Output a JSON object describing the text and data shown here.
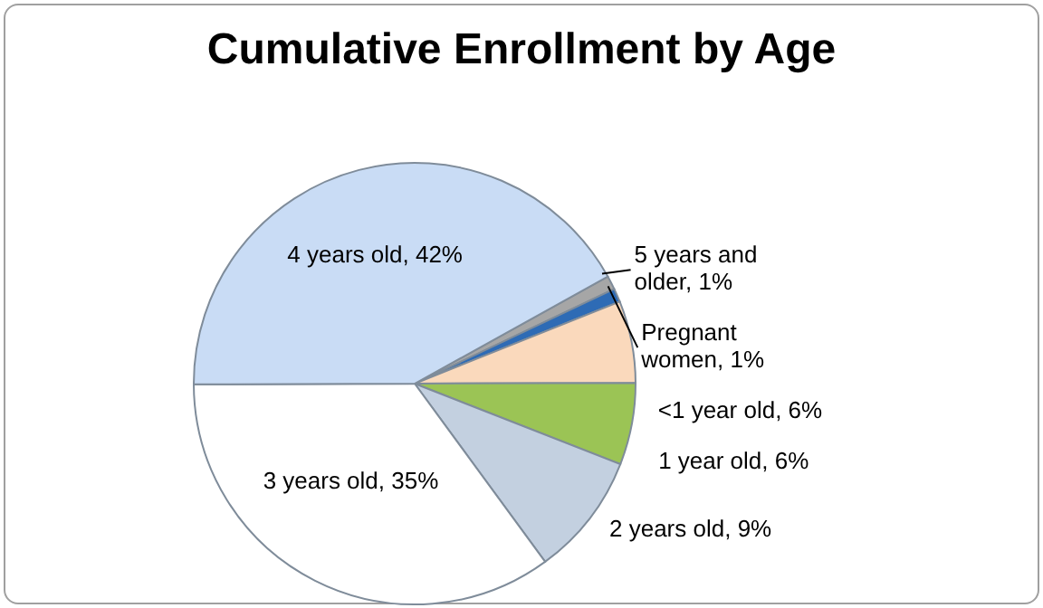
{
  "chart_data": {
    "type": "pie",
    "title": "Cumulative Enrollment by Age",
    "categories": [
      "5 years and older",
      "Pregnant women",
      "<1 year old",
      "1 year old",
      "2 years old",
      "3 years old",
      "4 years old"
    ],
    "values": [
      1,
      1,
      6,
      6,
      9,
      35,
      42
    ],
    "colors": [
      "#a6a6a6",
      "#2e6bb5",
      "#fad9bc",
      "#9bc455",
      "#c3d0e0",
      "#ffffff",
      "#c9dcf5"
    ],
    "value_labels": [
      "1%",
      "1%",
      "6%",
      "6%",
      "9%",
      "35%",
      "42%"
    ]
  }
}
